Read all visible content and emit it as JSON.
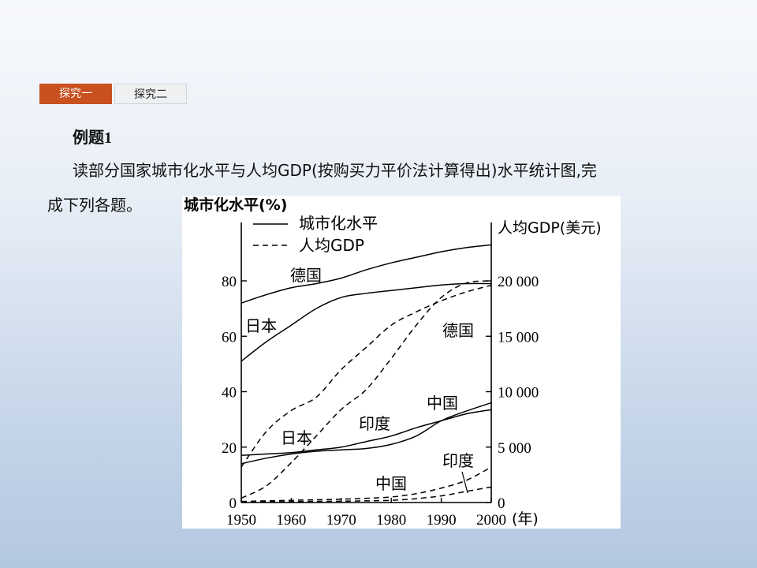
{
  "tabs": [
    {
      "label": "探究一",
      "active": true
    },
    {
      "label": "探究二",
      "active": false
    }
  ],
  "heading": {
    "prefix": "例题",
    "number": "1"
  },
  "text": {
    "line1": "读部分国家城市化水平与人均GDP(按购买力平价法计算得出)水平统计图,完",
    "line2": "成下列各题。"
  },
  "colors": {
    "tab_active": "#c9501f",
    "tab_inactive": "#eef0f2"
  },
  "chart_data": {
    "type": "line",
    "y_left_label": "城市化水平(%)",
    "y_right_label": "人均GDP(美元)",
    "x_unit": "(年)",
    "x_ticks": [
      "1950",
      "1960",
      "1970",
      "1980",
      "1990",
      "2000"
    ],
    "y_left_ticks": [
      "0",
      "20",
      "40",
      "60",
      "80"
    ],
    "y_right_ticks": [
      "0",
      "5 000",
      "10 000",
      "15 000",
      "20 000"
    ],
    "x_range": [
      1950,
      2000
    ],
    "y_left_range": [
      0,
      100
    ],
    "y_right_range": [
      0,
      25000
    ],
    "legend": [
      {
        "label": "城市化水平",
        "style": "solid"
      },
      {
        "label": "人均GDP",
        "style": "dashed"
      }
    ],
    "series": [
      {
        "name": "德国",
        "metric": "城市化水平",
        "axis": "left",
        "style": "solid",
        "x": [
          1950,
          1955,
          1960,
          1965,
          1970,
          1975,
          1980,
          1985,
          1990,
          1995,
          2000
        ],
        "y": [
          72,
          75,
          77.5,
          79,
          81,
          84,
          86.5,
          88.5,
          90.5,
          92,
          93
        ]
      },
      {
        "name": "日本",
        "metric": "城市化水平",
        "axis": "left",
        "style": "solid",
        "x": [
          1950,
          1955,
          1960,
          1965,
          1970,
          1975,
          1980,
          1985,
          1990,
          1995,
          2000
        ],
        "y": [
          51,
          58,
          64,
          70,
          74,
          75.5,
          76.5,
          77.5,
          78.5,
          79,
          79
        ]
      },
      {
        "name": "印度",
        "metric": "城市化水平",
        "axis": "left",
        "style": "solid",
        "x": [
          1950,
          1955,
          1960,
          1965,
          1970,
          1975,
          1980,
          1985,
          1990,
          1995,
          2000
        ],
        "y": [
          17,
          17.5,
          18,
          19,
          20,
          22,
          24,
          27,
          29.5,
          32,
          33.5
        ]
      },
      {
        "name": "中国",
        "metric": "城市化水平",
        "axis": "left",
        "style": "solid",
        "x": [
          1950,
          1955,
          1960,
          1965,
          1970,
          1975,
          1980,
          1985,
          1990,
          1995,
          2000
        ],
        "y": [
          14,
          16,
          17.5,
          18.5,
          19,
          19.5,
          21,
          24,
          29.5,
          33,
          36
        ]
      },
      {
        "name": "日本",
        "metric": "人均GDP",
        "axis": "right",
        "style": "dashed",
        "x": [
          1950,
          1955,
          1960,
          1965,
          1970,
          1975,
          1980,
          1985,
          1990,
          1995,
          2000
        ],
        "y": [
          400,
          1500,
          3600,
          6000,
          8400,
          10200,
          13000,
          16000,
          18500,
          19800,
          20000
        ]
      },
      {
        "name": "德国",
        "metric": "人均GDP",
        "axis": "right",
        "style": "dashed",
        "x": [
          1950,
          1955,
          1960,
          1965,
          1970,
          1975,
          1980,
          1985,
          1990,
          1995,
          2000
        ],
        "y": [
          3200,
          6400,
          8300,
          9500,
          12000,
          14000,
          16000,
          17200,
          18200,
          19000,
          19600
        ]
      },
      {
        "name": "印度",
        "metric": "人均GDP",
        "axis": "right",
        "style": "dashed",
        "x": [
          1950,
          1955,
          1960,
          1965,
          1970,
          1975,
          1980,
          1985,
          1990,
          1995,
          2000
        ],
        "y": [
          100,
          150,
          200,
          250,
          300,
          380,
          500,
          800,
          1300,
          2000,
          3200
        ]
      },
      {
        "name": "中国",
        "metric": "人均GDP",
        "axis": "right",
        "style": "dashed",
        "x": [
          1950,
          1955,
          1960,
          1965,
          1970,
          1975,
          1980,
          1985,
          1990,
          1995,
          2000
        ],
        "y": [
          40,
          60,
          80,
          100,
          120,
          150,
          200,
          350,
          600,
          1000,
          1400
        ]
      }
    ]
  }
}
